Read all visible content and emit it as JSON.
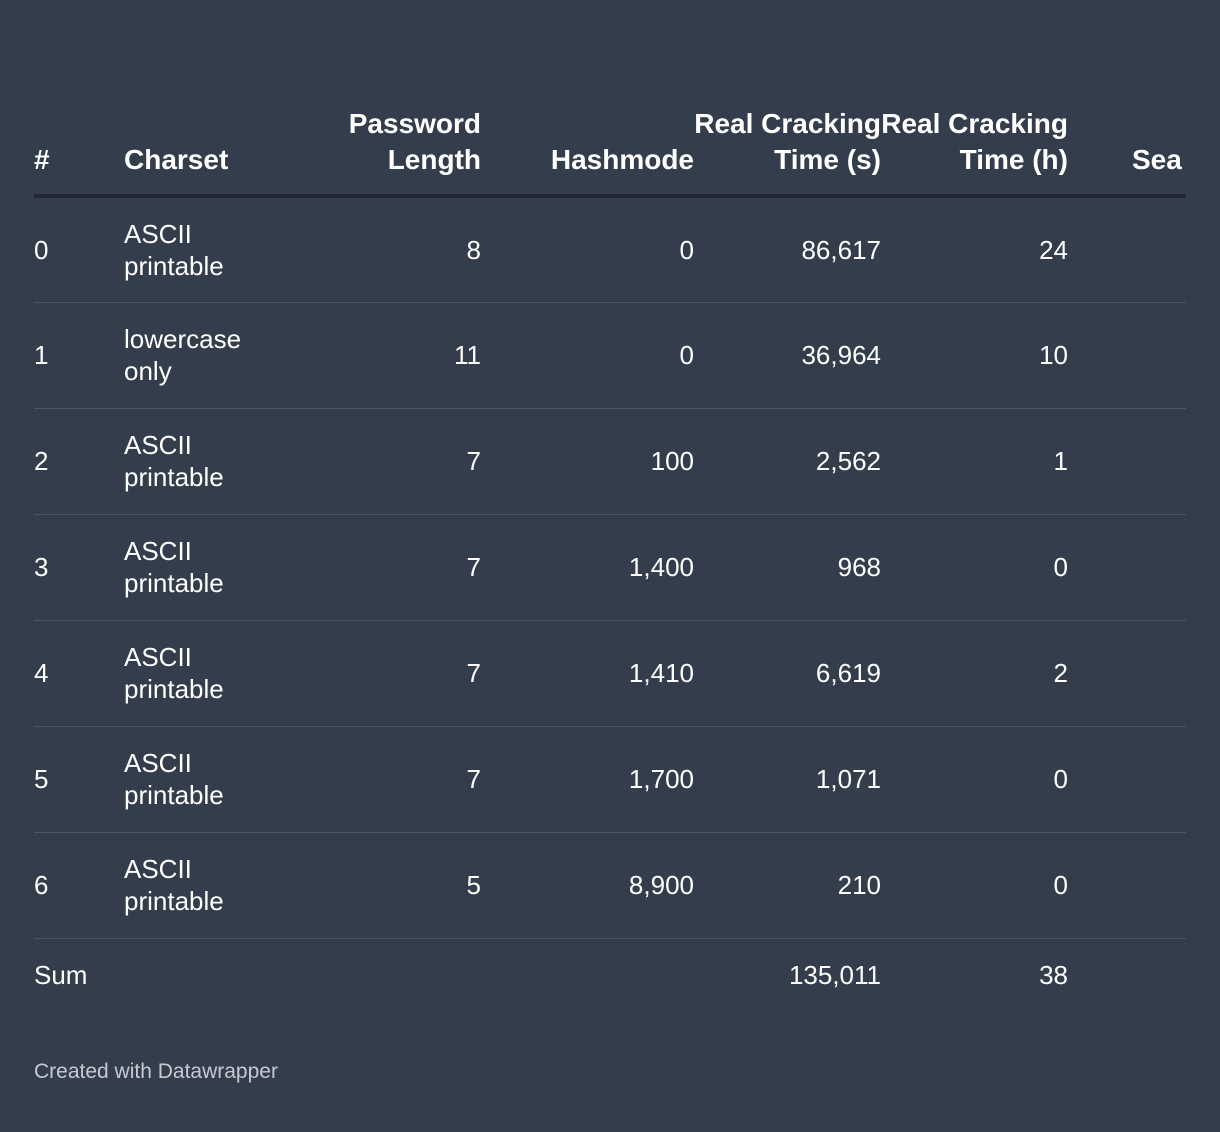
{
  "chart_data": {
    "type": "table",
    "columns": [
      "#",
      "Charset",
      "Password Length",
      "Hashmode",
      "Real Cracking Time (s)",
      "Real Cracking Time (h)",
      "Sea S"
    ],
    "rows": [
      {
        "idx": "0",
        "charset": "ASCII printable",
        "length": "8",
        "hashmode": "0",
        "real_s": "86,617",
        "real_h": "24",
        "sea": ""
      },
      {
        "idx": "1",
        "charset": "lowercase only",
        "length": "11",
        "hashmode": "0",
        "real_s": "36,964",
        "real_h": "10",
        "sea": ""
      },
      {
        "idx": "2",
        "charset": "ASCII printable",
        "length": "7",
        "hashmode": "100",
        "real_s": "2,562",
        "real_h": "1",
        "sea": ""
      },
      {
        "idx": "3",
        "charset": "ASCII printable",
        "length": "7",
        "hashmode": "1,400",
        "real_s": "968",
        "real_h": "0",
        "sea": ""
      },
      {
        "idx": "4",
        "charset": "ASCII printable",
        "length": "7",
        "hashmode": "1,410",
        "real_s": "6,619",
        "real_h": "2",
        "sea": ""
      },
      {
        "idx": "5",
        "charset": "ASCII printable",
        "length": "7",
        "hashmode": "1,700",
        "real_s": "1,071",
        "real_h": "0",
        "sea": ""
      },
      {
        "idx": "6",
        "charset": "ASCII printable",
        "length": "5",
        "hashmode": "8,900",
        "real_s": "210",
        "real_h": "0",
        "sea": ""
      },
      {
        "idx": "Sum",
        "charset": "",
        "length": "",
        "hashmode": "",
        "real_s": "135,011",
        "real_h": "38",
        "sea": ""
      }
    ]
  },
  "footer": "Created with Datawrapper",
  "colors": {
    "background": "#333d4c",
    "text": "#ffffff",
    "header_rule": "#222831",
    "row_rule": "#4a5463",
    "footer_text": "#c6cad1"
  }
}
